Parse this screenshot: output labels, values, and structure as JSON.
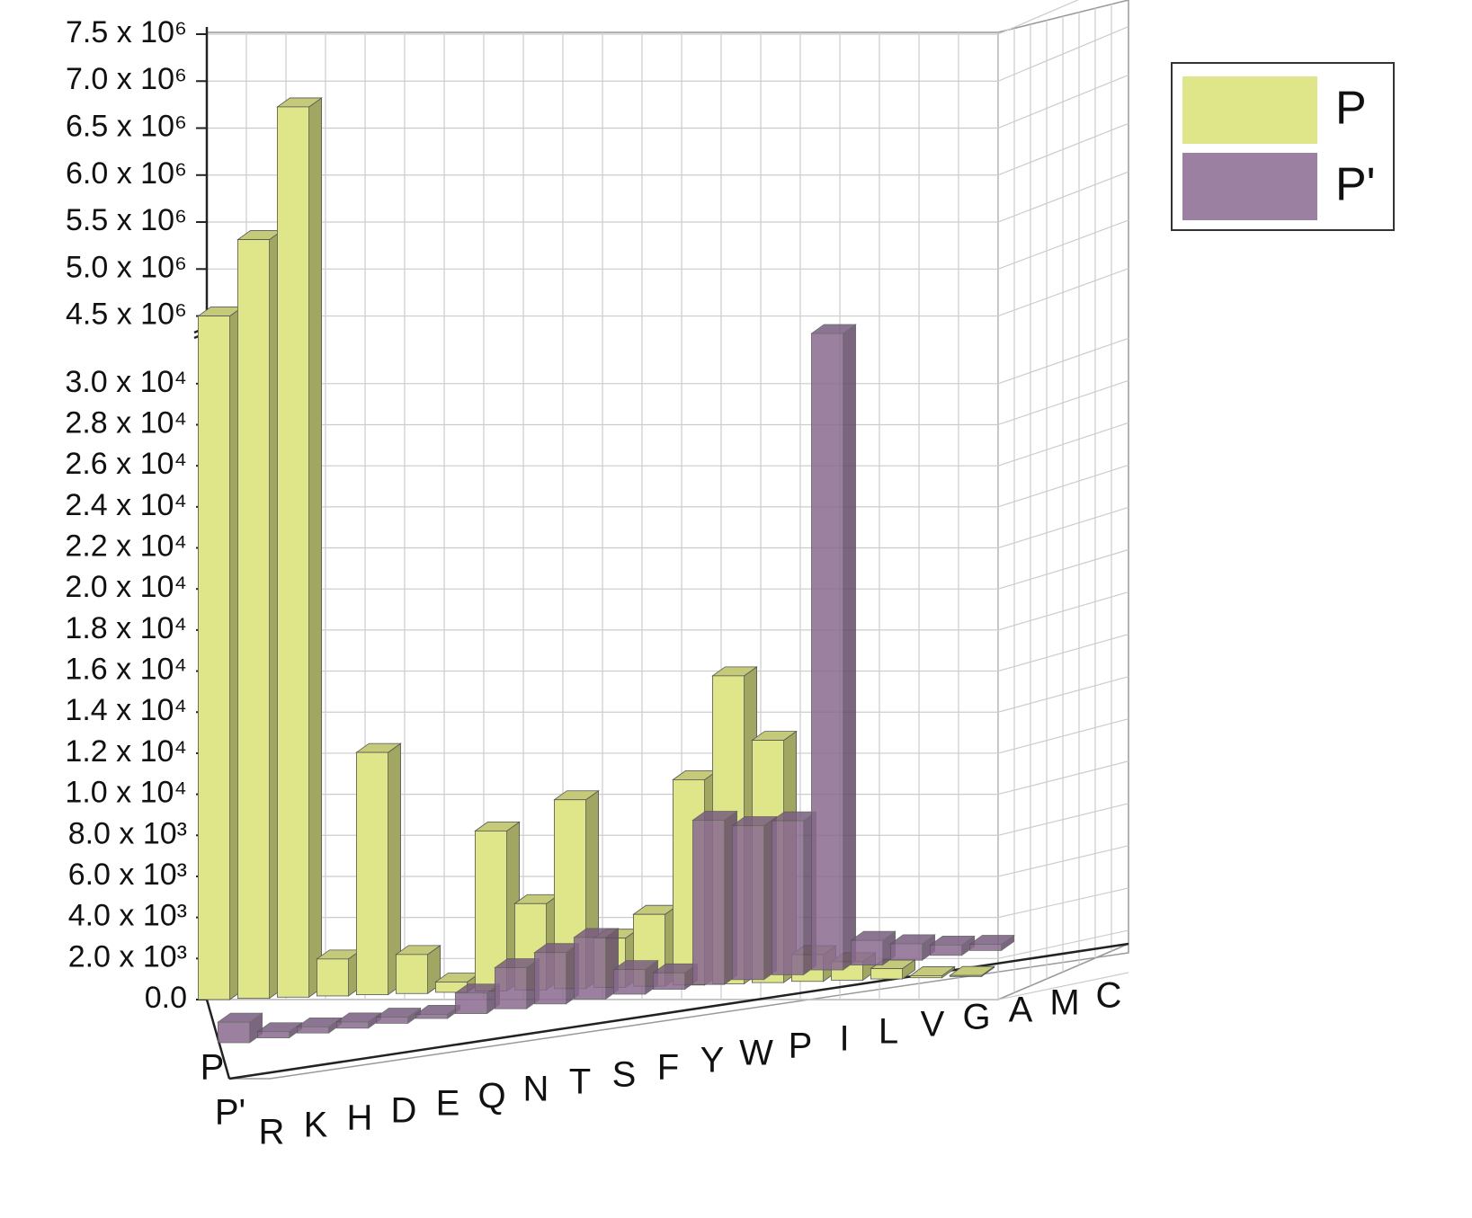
{
  "chart_data": {
    "type": "bar3d",
    "categories": [
      "R",
      "K",
      "H",
      "D",
      "E",
      "Q",
      "N",
      "T",
      "S",
      "F",
      "Y",
      "W",
      "P",
      "I",
      "L",
      "V",
      "G",
      "A",
      "M",
      "C"
    ],
    "series": [
      {
        "name": "P",
        "color": "#dfe68a",
        "values": [
          4500000,
          5300000,
          6700000,
          1800,
          11800,
          1900,
          500,
          7800,
          4200,
          9200,
          2400,
          3500,
          10000,
          15000,
          11800,
          1300,
          900,
          500,
          100,
          50
        ]
      },
      {
        "name": "P'",
        "color": "#8a6a90",
        "values": [
          1000,
          300,
          300,
          300,
          300,
          200,
          1000,
          2000,
          2500,
          3000,
          1200,
          800,
          8000,
          7500,
          7500,
          31000,
          1200,
          800,
          500,
          300
        ]
      }
    ],
    "ylim": [
      0,
      32400
    ],
    "yticks": [
      {
        "value": 0,
        "label": "0.0"
      },
      {
        "value": 2000,
        "label": "2.0 x 10³"
      },
      {
        "value": 4000,
        "label": "4.0 x 10³"
      },
      {
        "value": 6000,
        "label": "6.0 x 10³"
      },
      {
        "value": 8000,
        "label": "8.0 x 10³"
      },
      {
        "value": 10000,
        "label": "1.0 x 10⁴"
      },
      {
        "value": 12000,
        "label": "1.2 x 10⁴"
      },
      {
        "value": 14000,
        "label": "1.4 x 10⁴"
      },
      {
        "value": 16000,
        "label": "1.6 x 10⁴"
      },
      {
        "value": 18000,
        "label": "1.8 x 10⁴"
      },
      {
        "value": 20000,
        "label": "2.0 x 10⁴"
      },
      {
        "value": 22000,
        "label": "2.2 x 10⁴"
      },
      {
        "value": 24000,
        "label": "2.4 x 10⁴"
      },
      {
        "value": 26000,
        "label": "2.6 x 10⁴"
      },
      {
        "value": 28000,
        "label": "2.8 x 10⁴"
      },
      {
        "value": 30000,
        "label": "3.0 x 10⁴"
      }
    ],
    "ylim_upper": [
      4400000,
      7500000
    ],
    "yticks_upper": [
      {
        "value": 4500000,
        "label": "4.5 x 10⁶"
      },
      {
        "value": 5000000,
        "label": "5.0 x 10⁶"
      },
      {
        "value": 5500000,
        "label": "5.5 x 10⁶"
      },
      {
        "value": 6000000,
        "label": "6.0 x 10⁶"
      },
      {
        "value": 6500000,
        "label": "6.5 x 10⁶"
      },
      {
        "value": 7000000,
        "label": "7.0 x 10⁶"
      },
      {
        "value": 7500000,
        "label": "7.5 x 10⁶"
      }
    ],
    "grid": true,
    "legend": "upper right"
  }
}
